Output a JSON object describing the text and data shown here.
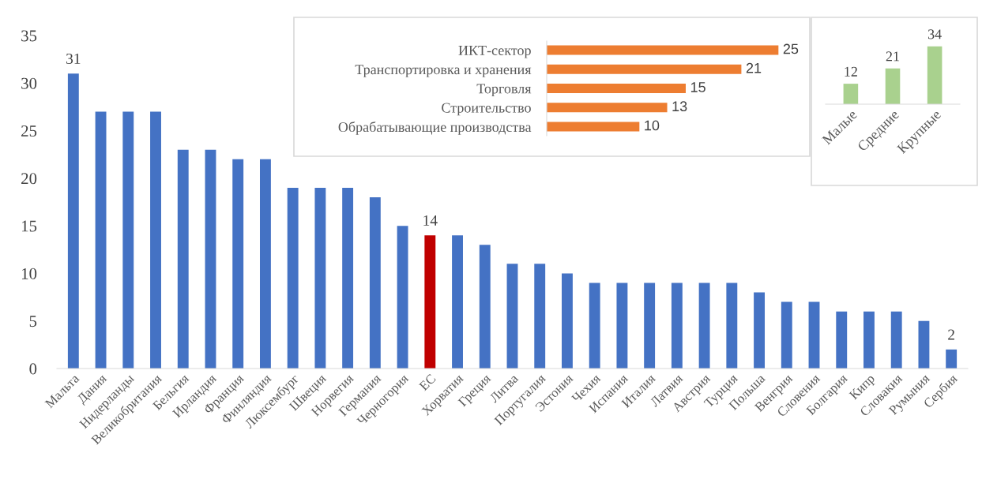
{
  "chart_data": [
    {
      "type": "bar",
      "categories": [
        "Мальта",
        "Дания",
        "Нидерланды",
        "Великобритания",
        "Бельгия",
        "Ирландия",
        "Франция",
        "Финляндия",
        "Люксембург",
        "Швеция",
        "Норвегия",
        "Германия",
        "Черногория",
        "ЕС",
        "Хорватия",
        "Греция",
        "Литва",
        "Португалия",
        "Эстония",
        "Чехия",
        "Испания",
        "Италия",
        "Латвия",
        "Австрия",
        "Турция",
        "Польша",
        "Венгрия",
        "Словения",
        "Болгария",
        "Кипр",
        "Словакия",
        "Румыния",
        "Сербия"
      ],
      "values": [
        31,
        27,
        27,
        27,
        23,
        23,
        22,
        22,
        19,
        19,
        19,
        18,
        15,
        14,
        14,
        13,
        11,
        11,
        10,
        9,
        9,
        9,
        9,
        9,
        9,
        8,
        7,
        7,
        6,
        6,
        6,
        5,
        2
      ],
      "colors": [
        "#4472c4",
        "#4472c4",
        "#4472c4",
        "#4472c4",
        "#4472c4",
        "#4472c4",
        "#4472c4",
        "#4472c4",
        "#4472c4",
        "#4472c4",
        "#4472c4",
        "#4472c4",
        "#4472c4",
        "#c00000",
        "#4472c4",
        "#4472c4",
        "#4472c4",
        "#4472c4",
        "#4472c4",
        "#4472c4",
        "#4472c4",
        "#4472c4",
        "#4472c4",
        "#4472c4",
        "#4472c4",
        "#4472c4",
        "#4472c4",
        "#4472c4",
        "#4472c4",
        "#4472c4",
        "#4472c4",
        "#4472c4",
        "#4472c4"
      ],
      "value_labels": [
        "31",
        null,
        null,
        null,
        null,
        null,
        null,
        null,
        null,
        null,
        null,
        null,
        null,
        "14",
        null,
        null,
        null,
        null,
        null,
        null,
        null,
        null,
        null,
        null,
        null,
        null,
        null,
        null,
        null,
        null,
        null,
        null,
        "2"
      ],
      "ylim": [
        0,
        35
      ],
      "yticks": [
        0,
        5,
        10,
        15,
        20,
        25,
        30,
        35
      ]
    },
    {
      "type": "bar",
      "orientation": "horizontal",
      "categories": [
        "ИКТ-сектор",
        "Транспортировка и хранения",
        "Торговля",
        "Строительство",
        "Обрабатывающие производства"
      ],
      "values": [
        25,
        21,
        15,
        13,
        10
      ],
      "colors": [
        "#ed7d31",
        "#ed7d31",
        "#ed7d31",
        "#ed7d31",
        "#ed7d31"
      ],
      "data_labels": true,
      "tick_labels": "y"
    },
    {
      "type": "bar",
      "categories": [
        "Малые",
        "Средние",
        "Крупные"
      ],
      "values": [
        12,
        21,
        34
      ],
      "colors": [
        "#a9d18e",
        "#a9d18e",
        "#a9d18e"
      ],
      "data_labels": true,
      "tick_labels": "x"
    }
  ]
}
